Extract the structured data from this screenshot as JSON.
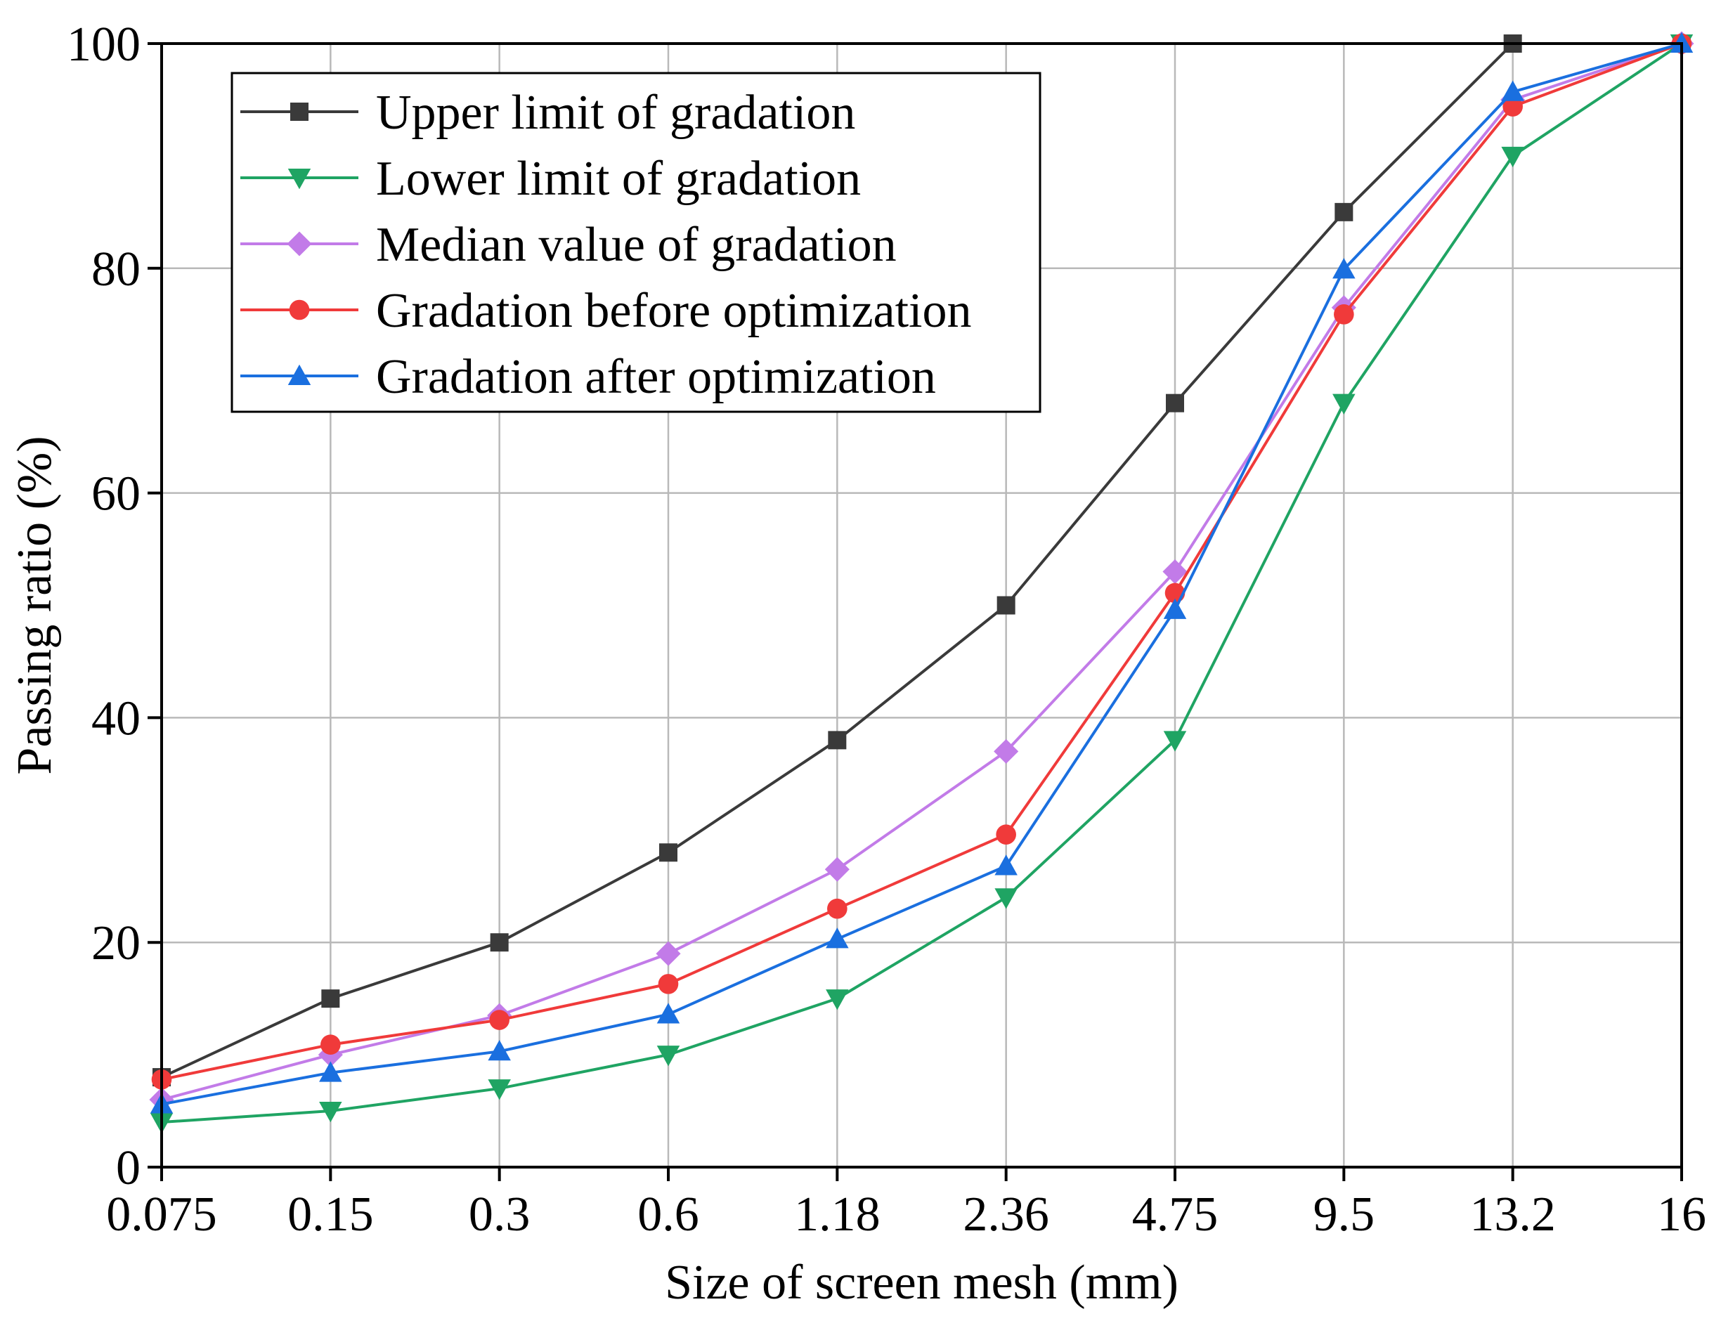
{
  "chart_data": {
    "type": "line",
    "title": "",
    "xlabel": "Size of screen mesh (mm)",
    "ylabel": "Passing ratio (%)",
    "x_scale": "categorical (equally spaced sieve sizes)",
    "categories": [
      "0.075",
      "0.15",
      "0.3",
      "0.6",
      "1.18",
      "2.36",
      "4.75",
      "9.5",
      "13.2",
      "16"
    ],
    "ylim": [
      0,
      100
    ],
    "yticks": [
      0,
      20,
      40,
      60,
      80,
      100
    ],
    "grid": true,
    "legend_position": "top-left",
    "series": [
      {
        "name": "Upper limit of gradation",
        "color": "#3a3a3a",
        "marker": "square",
        "values": [
          8,
          15,
          20,
          28,
          38,
          50,
          68,
          85,
          100,
          100
        ]
      },
      {
        "name": "Lower limit of gradation",
        "color": "#1fa463",
        "marker": "triangle-down",
        "values": [
          4,
          5,
          7,
          10,
          15,
          24,
          38,
          68,
          90,
          100
        ]
      },
      {
        "name": "Median value of gradation",
        "color": "#c27be8",
        "marker": "diamond",
        "values": [
          6,
          10,
          13.5,
          19,
          26.5,
          37,
          53,
          76.5,
          95,
          100
        ]
      },
      {
        "name": "Gradation before optimization",
        "color": "#f03a3a",
        "marker": "circle",
        "values": [
          7.8,
          10.9,
          13.1,
          16.3,
          23,
          29.6,
          51.1,
          75.9,
          94.4,
          100
        ]
      },
      {
        "name": "Gradation after optimization",
        "color": "#1a6fdf",
        "marker": "triangle-up",
        "values": [
          5.6,
          8.4,
          10.3,
          13.6,
          20.3,
          26.8,
          49.6,
          79.9,
          95.7,
          100
        ]
      }
    ]
  }
}
